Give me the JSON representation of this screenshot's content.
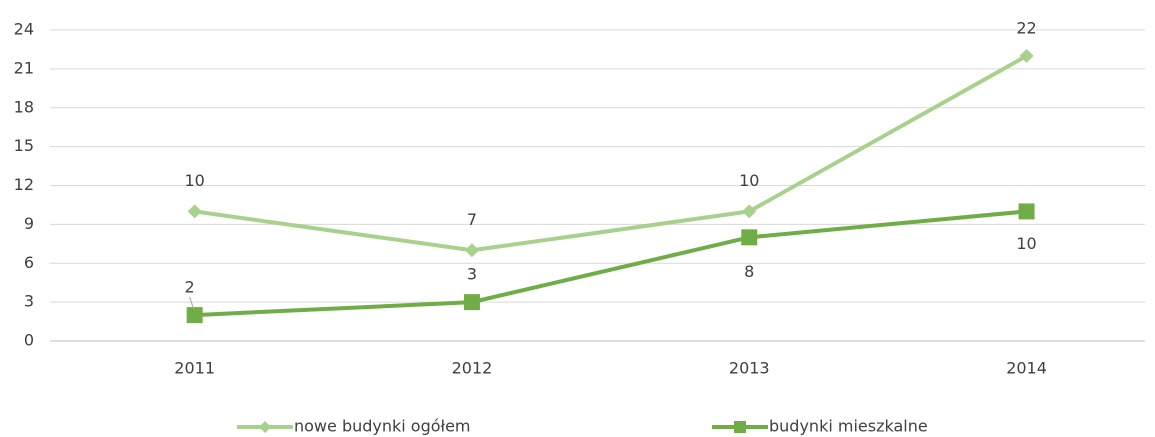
{
  "chart_data": {
    "type": "line",
    "categories": [
      "2011",
      "2012",
      "2013",
      "2014"
    ],
    "series": [
      {
        "name": "nowe budynki ogółem",
        "color": "#a9d18e",
        "marker": "diamond",
        "values": [
          10,
          7,
          10,
          22
        ]
      },
      {
        "name": "budynki mieszkalne",
        "color": "#70ad47",
        "marker": "square",
        "values": [
          2,
          3,
          8,
          10
        ]
      }
    ],
    "ylim": [
      0,
      24
    ],
    "yticks": [
      0,
      3,
      6,
      9,
      12,
      15,
      18,
      21,
      24
    ],
    "grid": true,
    "legend": "bottom",
    "data_labels": true
  }
}
